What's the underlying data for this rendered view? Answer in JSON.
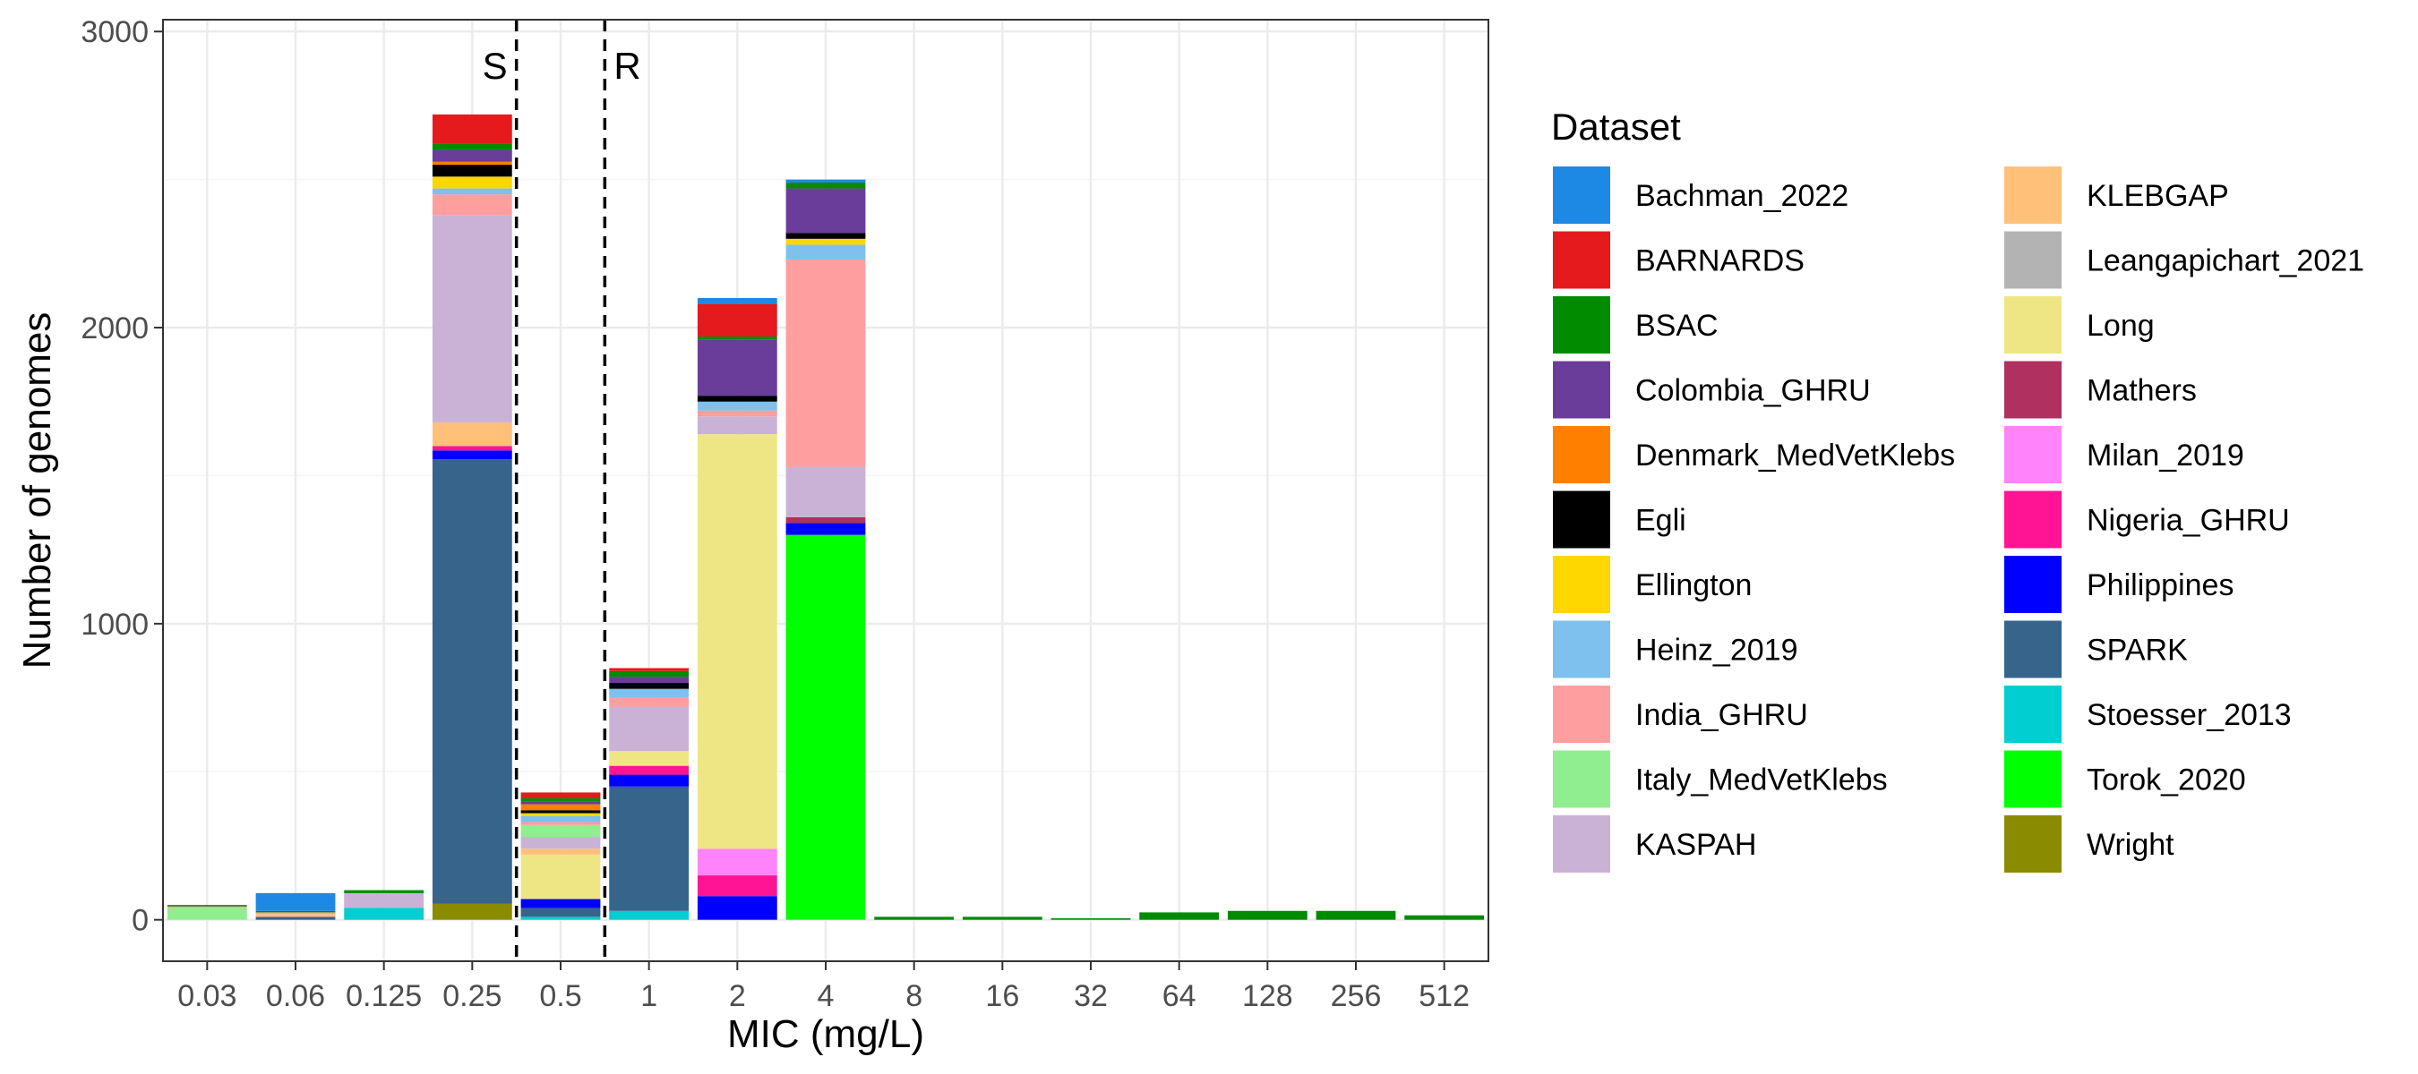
{
  "chart_data": {
    "type": "bar",
    "stacked": true,
    "xlabel": "MIC (mg/L)",
    "ylabel": "Number of genomes",
    "ylim": [
      -140,
      3040
    ],
    "yticks": [
      0,
      1000,
      2000,
      3000
    ],
    "grid": true,
    "legend_title": "Dataset",
    "legend_position": "right",
    "categories": [
      "0.03",
      "0.06",
      "0.125",
      "0.25",
      "0.5",
      "1",
      "2",
      "4",
      "8",
      "16",
      "32",
      "64",
      "128",
      "256",
      "512"
    ],
    "annotations": [
      {
        "text": "S",
        "between": [
          "0.25",
          "0.5"
        ],
        "side": "left"
      },
      {
        "text": "R",
        "between": [
          "0.5",
          "1"
        ],
        "side": "right"
      }
    ],
    "series": [
      {
        "name": "Wright",
        "color": "#8B8B00",
        "values": [
          0,
          0,
          0,
          55,
          0,
          0,
          0,
          0,
          0,
          0,
          0,
          0,
          0,
          0,
          0
        ]
      },
      {
        "name": "Torok_2020",
        "color": "#00FF00",
        "values": [
          0,
          0,
          0,
          0,
          0,
          0,
          0,
          1300,
          0,
          0,
          0,
          0,
          0,
          0,
          0
        ]
      },
      {
        "name": "Stoesser_2013",
        "color": "#00CED1",
        "values": [
          0,
          0,
          40,
          0,
          10,
          30,
          0,
          0,
          0,
          0,
          0,
          0,
          0,
          0,
          0
        ]
      },
      {
        "name": "SPARK",
        "color": "#36648B",
        "values": [
          0,
          10,
          0,
          1500,
          30,
          420,
          0,
          0,
          0,
          0,
          0,
          0,
          0,
          0,
          0
        ]
      },
      {
        "name": "Philippines",
        "color": "#0000FF",
        "values": [
          0,
          0,
          0,
          30,
          30,
          40,
          80,
          40,
          0,
          0,
          0,
          0,
          0,
          0,
          0
        ]
      },
      {
        "name": "Nigeria_GHRU",
        "color": "#FF1493",
        "values": [
          0,
          0,
          0,
          15,
          0,
          30,
          70,
          0,
          0,
          0,
          0,
          0,
          0,
          0,
          0
        ]
      },
      {
        "name": "Milan_2019",
        "color": "#FF83FA",
        "values": [
          0,
          0,
          0,
          0,
          0,
          0,
          90,
          0,
          0,
          0,
          0,
          0,
          0,
          0,
          0
        ]
      },
      {
        "name": "Mathers",
        "color": "#B03060",
        "values": [
          0,
          0,
          0,
          0,
          0,
          0,
          0,
          20,
          0,
          0,
          0,
          0,
          0,
          0,
          0
        ]
      },
      {
        "name": "Long",
        "color": "#EEE685",
        "values": [
          0,
          0,
          0,
          0,
          150,
          50,
          1400,
          0,
          0,
          0,
          0,
          0,
          0,
          0,
          0
        ]
      },
      {
        "name": "Leangapichart_2021",
        "color": "#B3B3B3",
        "values": [
          0,
          0,
          0,
          0,
          0,
          0,
          0,
          0,
          0,
          0,
          0,
          0,
          0,
          0,
          0
        ]
      },
      {
        "name": "KLEBGAP",
        "color": "#FFC07A",
        "values": [
          0,
          10,
          0,
          80,
          20,
          0,
          0,
          0,
          0,
          0,
          0,
          0,
          0,
          0,
          0
        ]
      },
      {
        "name": "KASPAH",
        "color": "#C9B2D6",
        "values": [
          0,
          0,
          50,
          700,
          40,
          150,
          60,
          170,
          0,
          0,
          0,
          0,
          0,
          0,
          0
        ]
      },
      {
        "name": "Italy_MedVetKlebs",
        "color": "#90EE90",
        "values": [
          40,
          0,
          0,
          0,
          40,
          0,
          0,
          0,
          0,
          0,
          0,
          0,
          0,
          0,
          0
        ]
      },
      {
        "name": "India_GHRU",
        "color": "#FF9E9E",
        "values": [
          5,
          5,
          0,
          70,
          10,
          30,
          20,
          700,
          0,
          0,
          0,
          0,
          0,
          0,
          0
        ]
      },
      {
        "name": "Heinz_2019",
        "color": "#7EC0EE",
        "values": [
          0,
          0,
          0,
          20,
          20,
          30,
          30,
          50,
          0,
          0,
          0,
          0,
          0,
          0,
          0
        ]
      },
      {
        "name": "Ellington",
        "color": "#FFD700",
        "values": [
          0,
          0,
          0,
          40,
          10,
          0,
          0,
          20,
          0,
          0,
          0,
          0,
          0,
          0,
          0
        ]
      },
      {
        "name": "Egli",
        "color": "#000000",
        "values": [
          0,
          0,
          0,
          40,
          10,
          20,
          20,
          20,
          0,
          0,
          0,
          0,
          0,
          0,
          0
        ]
      },
      {
        "name": "Denmark_MedVetKlebs",
        "color": "#FF7F00",
        "values": [
          0,
          0,
          0,
          10,
          20,
          0,
          0,
          0,
          0,
          0,
          0,
          0,
          0,
          0,
          0
        ]
      },
      {
        "name": "Colombia_GHRU",
        "color": "#6A3D9A",
        "values": [
          0,
          0,
          0,
          40,
          10,
          20,
          190,
          150,
          0,
          0,
          0,
          0,
          0,
          0,
          0
        ]
      },
      {
        "name": "BSAC",
        "color": "#008B00",
        "values": [
          5,
          5,
          10,
          20,
          10,
          20,
          10,
          20,
          10,
          10,
          5,
          25,
          30,
          30,
          15
        ]
      },
      {
        "name": "BARNARDS",
        "color": "#E41A1C",
        "values": [
          0,
          0,
          0,
          100,
          20,
          10,
          110,
          0,
          0,
          0,
          0,
          0,
          0,
          0,
          0
        ]
      },
      {
        "name": "Bachman_2022",
        "color": "#1E88E5",
        "values": [
          0,
          60,
          0,
          0,
          0,
          0,
          20,
          10,
          0,
          0,
          0,
          0,
          0,
          0,
          0
        ]
      }
    ],
    "legend_order": [
      "Bachman_2022",
      "BARNARDS",
      "BSAC",
      "Colombia_GHRU",
      "Denmark_MedVetKlebs",
      "Egli",
      "Ellington",
      "Heinz_2019",
      "India_GHRU",
      "Italy_MedVetKlebs",
      "KASPAH",
      "KLEBGAP",
      "Leangapichart_2021",
      "Long",
      "Mathers",
      "Milan_2019",
      "Nigeria_GHRU",
      "Philippines",
      "SPARK",
      "Stoesser_2013",
      "Torok_2020",
      "Wright"
    ]
  }
}
